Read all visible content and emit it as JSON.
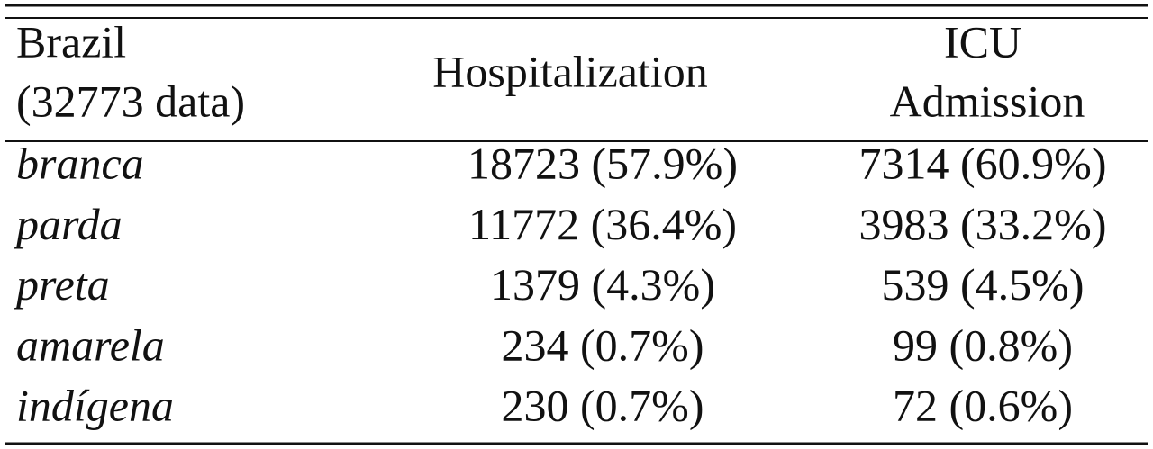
{
  "table": {
    "header": {
      "label": [
        "Brazil",
        "(32773 data)"
      ],
      "columns": [
        [
          "Hospitalization"
        ],
        [
          "ICU",
          "Admission"
        ]
      ]
    },
    "rows": [
      [
        "branca",
        "18723 (57.9%)",
        "7314 (60.9%)"
      ],
      [
        "parda",
        "11772 (36.4%)",
        "3983 (33.2%)"
      ],
      [
        "preta",
        "1379 (4.3%)",
        "539 (4.5%)"
      ],
      [
        "amarela",
        "234 (0.7%)",
        "99 (0.8%)"
      ],
      [
        "indígena",
        "230 (0.7%)",
        "72 (0.6%)"
      ]
    ]
  }
}
